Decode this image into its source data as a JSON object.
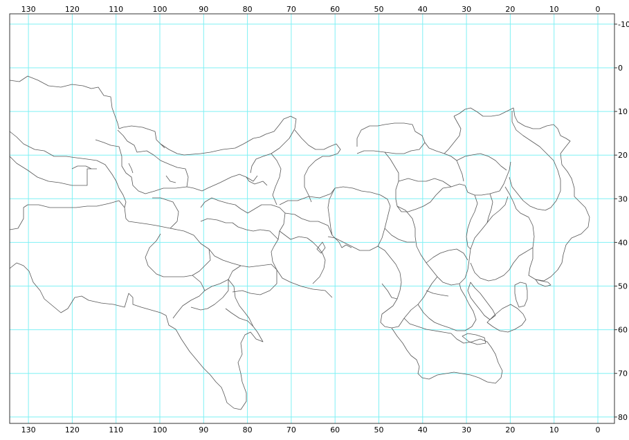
{
  "map": {
    "colors": {
      "grid": "#7ff0f4",
      "frame": "#333333",
      "boundary": "#555555",
      "background": "#ffffff",
      "label": "#000000"
    },
    "x_axis": {
      "values": [
        130,
        120,
        110,
        100,
        90,
        80,
        70,
        60,
        50,
        40,
        30,
        20,
        10,
        0
      ],
      "labels": [
        "130",
        "120",
        "110",
        "100",
        "90",
        "80",
        "70",
        "60",
        "50",
        "40",
        "30",
        "20",
        "10",
        "0"
      ]
    },
    "y_axis": {
      "values": [
        -10,
        0,
        10,
        20,
        30,
        40,
        50,
        60,
        70,
        80
      ],
      "labels": [
        "-10",
        "0",
        "10",
        "20",
        "30",
        "40",
        "50",
        "60",
        "70",
        "80"
      ]
    }
  }
}
